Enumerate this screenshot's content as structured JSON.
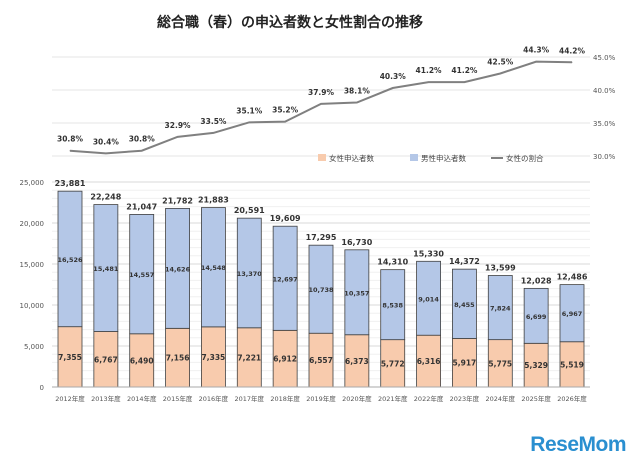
{
  "chart_data": {
    "type": "bar+line",
    "title": "総合職（春）の申込者数と女性割合の推移",
    "categories": [
      "2012年度",
      "2013年度",
      "2014年度",
      "2015年度",
      "2016年度",
      "2017年度",
      "2018年度",
      "2019年度",
      "2020年度",
      "2021年度",
      "2022年度",
      "2023年度",
      "2024年度",
      "2025年度",
      "2026年度"
    ],
    "series": [
      {
        "name": "女性申込者数",
        "type": "stacked-bar",
        "color": "#f8cbad",
        "values": [
          7355,
          6767,
          6490,
          7156,
          7335,
          7221,
          6912,
          6557,
          6373,
          5772,
          6316,
          5917,
          5775,
          5329,
          5519
        ],
        "labels": [
          "7,355",
          "6,767",
          "6,490",
          "7,156",
          "7,335",
          "7,221",
          "6,912",
          "6,557",
          "6,373",
          "5,772",
          "6,316",
          "5,917",
          "5,775",
          "5,329",
          "5,519"
        ]
      },
      {
        "name": "男性申込者数",
        "type": "stacked-bar",
        "color": "#b4c7e7",
        "values": [
          16526,
          15481,
          14557,
          14626,
          14548,
          13370,
          12697,
          10738,
          10357,
          8538,
          9014,
          8455,
          7824,
          6699,
          6967
        ],
        "labels": [
          "16,526",
          "15,481",
          "14,557",
          "14,626",
          "14,548",
          "13,370",
          "12,697",
          "10,738",
          "10,357",
          "8,538",
          "9,014",
          "8,455",
          "7,824",
          "6,699",
          "6,967"
        ]
      },
      {
        "name": "女性の割合",
        "type": "line",
        "color": "#808080",
        "values": [
          30.8,
          30.4,
          30.8,
          32.9,
          33.5,
          35.1,
          35.2,
          37.9,
          38.1,
          40.3,
          41.2,
          41.2,
          42.5,
          44.3,
          44.2
        ],
        "labels": [
          "30.8%",
          "30.4%",
          "30.8%",
          "32.9%",
          "33.5%",
          "35.1%",
          "35.2%",
          "37.9%",
          "38.1%",
          "40.3%",
          "41.2%",
          "41.2%",
          "42.5%",
          "44.3%",
          "44.2%"
        ]
      }
    ],
    "totals": [
      23881,
      22248,
      21047,
      21782,
      21883,
      20591,
      19609,
      17295,
      16730,
      14310,
      15330,
      14372,
      13599,
      12028,
      12486
    ],
    "total_labels": [
      "23,881",
      "22,248",
      "21,047",
      "21,782",
      "21,883",
      "20,591",
      "19,609",
      "17,295",
      "16,730",
      "14,310",
      "15,330",
      "14,372",
      "13,599",
      "12,028",
      "12,486"
    ],
    "y_left": {
      "range": [
        0,
        25000
      ],
      "ticks": [
        "0",
        "5,000",
        "10,000",
        "15,000",
        "20,000",
        "25,000"
      ]
    },
    "y_right": {
      "range": [
        30,
        45
      ],
      "ticks": [
        "30.0%",
        "35.0%",
        "40.0%",
        "45.0%"
      ]
    },
    "grid": true,
    "legend_position": "right, between line and bars"
  },
  "watermark": "ReseMom"
}
